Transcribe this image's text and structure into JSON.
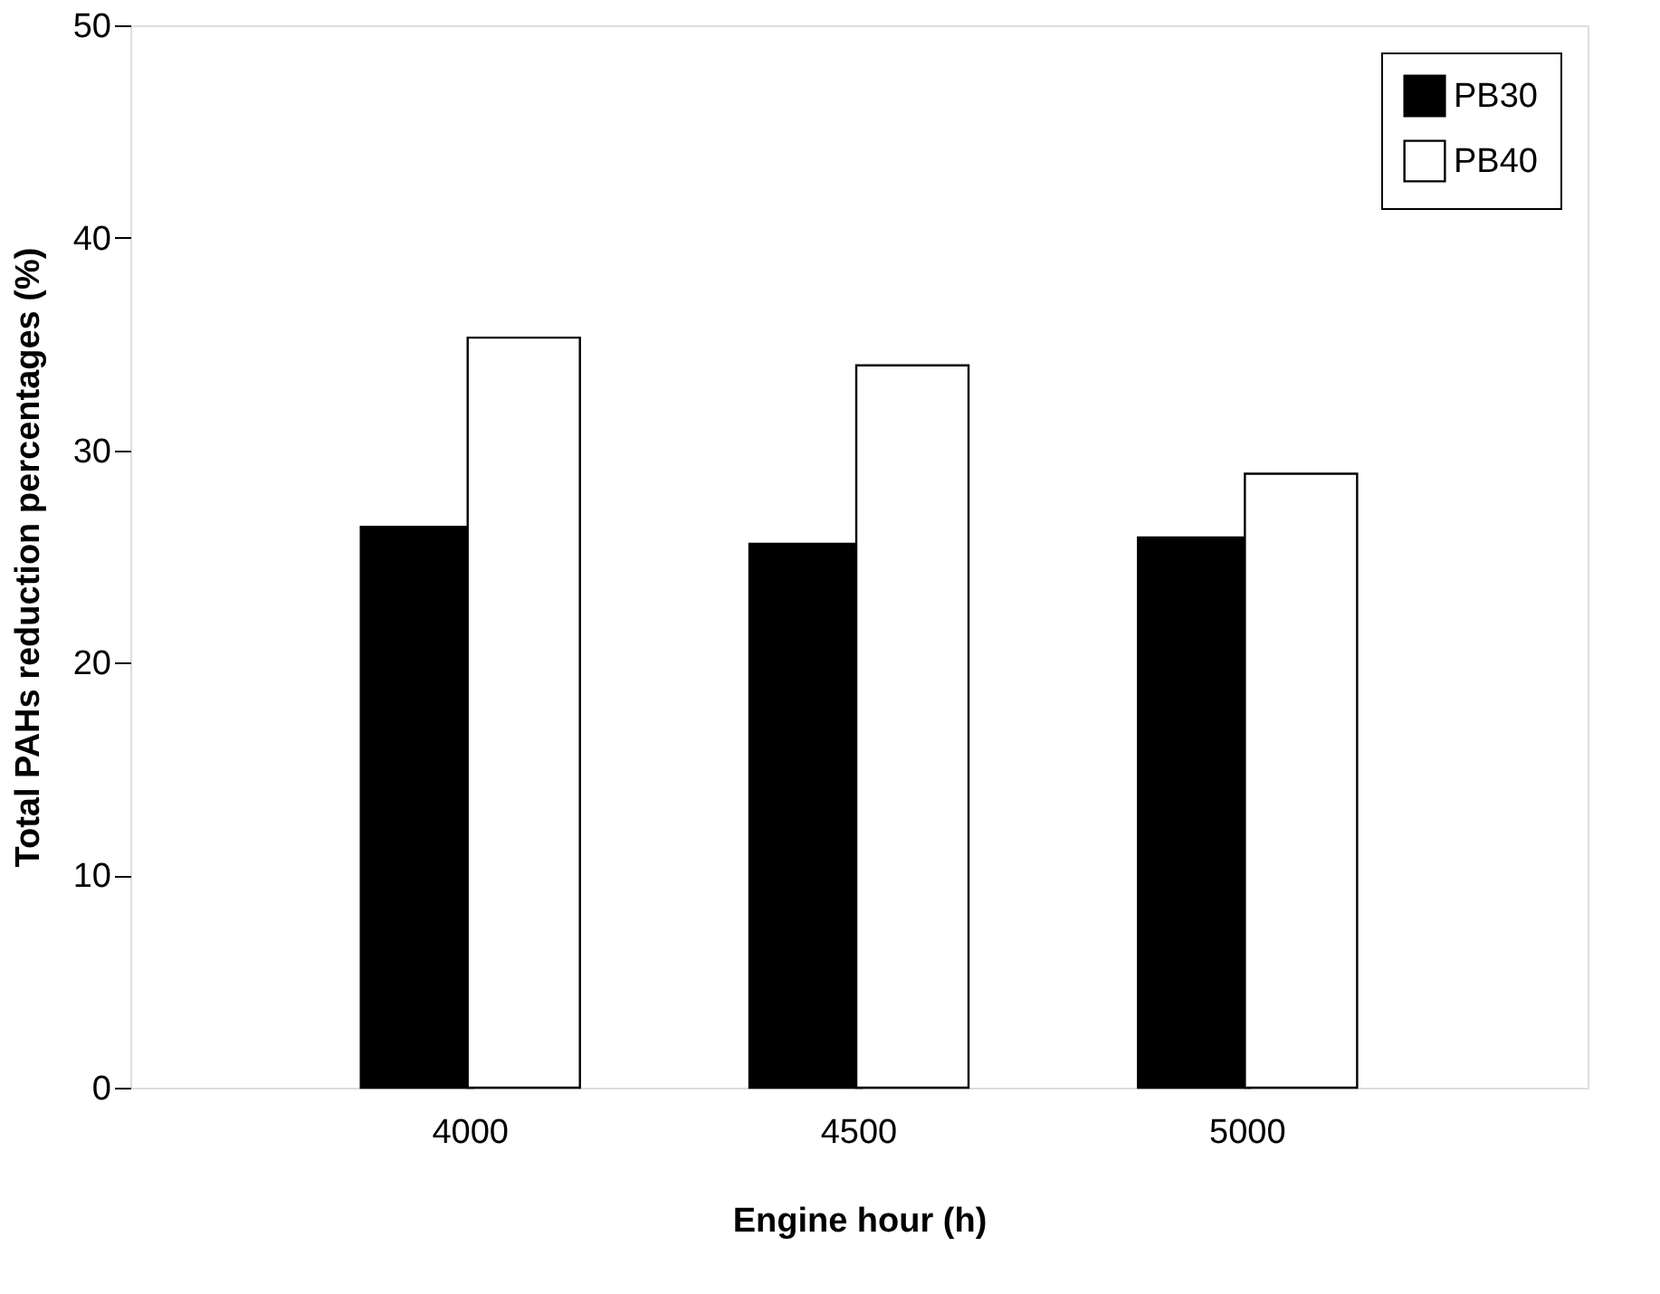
{
  "chart_data": {
    "type": "bar",
    "xlabel": "Engine hour  (h)",
    "ylabel": "Total PAHs reduction percentages  (%)",
    "categories": [
      "4000",
      "4500",
      "5000"
    ],
    "series": [
      {
        "name": "PB30",
        "color": "#000000",
        "values": [
          26.4,
          25.6,
          25.9
        ]
      },
      {
        "name": "PB40",
        "color": "#ffffff",
        "values": [
          35.3,
          34.0,
          28.9
        ]
      }
    ],
    "ylim": [
      0,
      50
    ],
    "yticks": [
      0,
      10,
      20,
      30,
      40,
      50
    ],
    "grid": false,
    "legend": "top right"
  }
}
